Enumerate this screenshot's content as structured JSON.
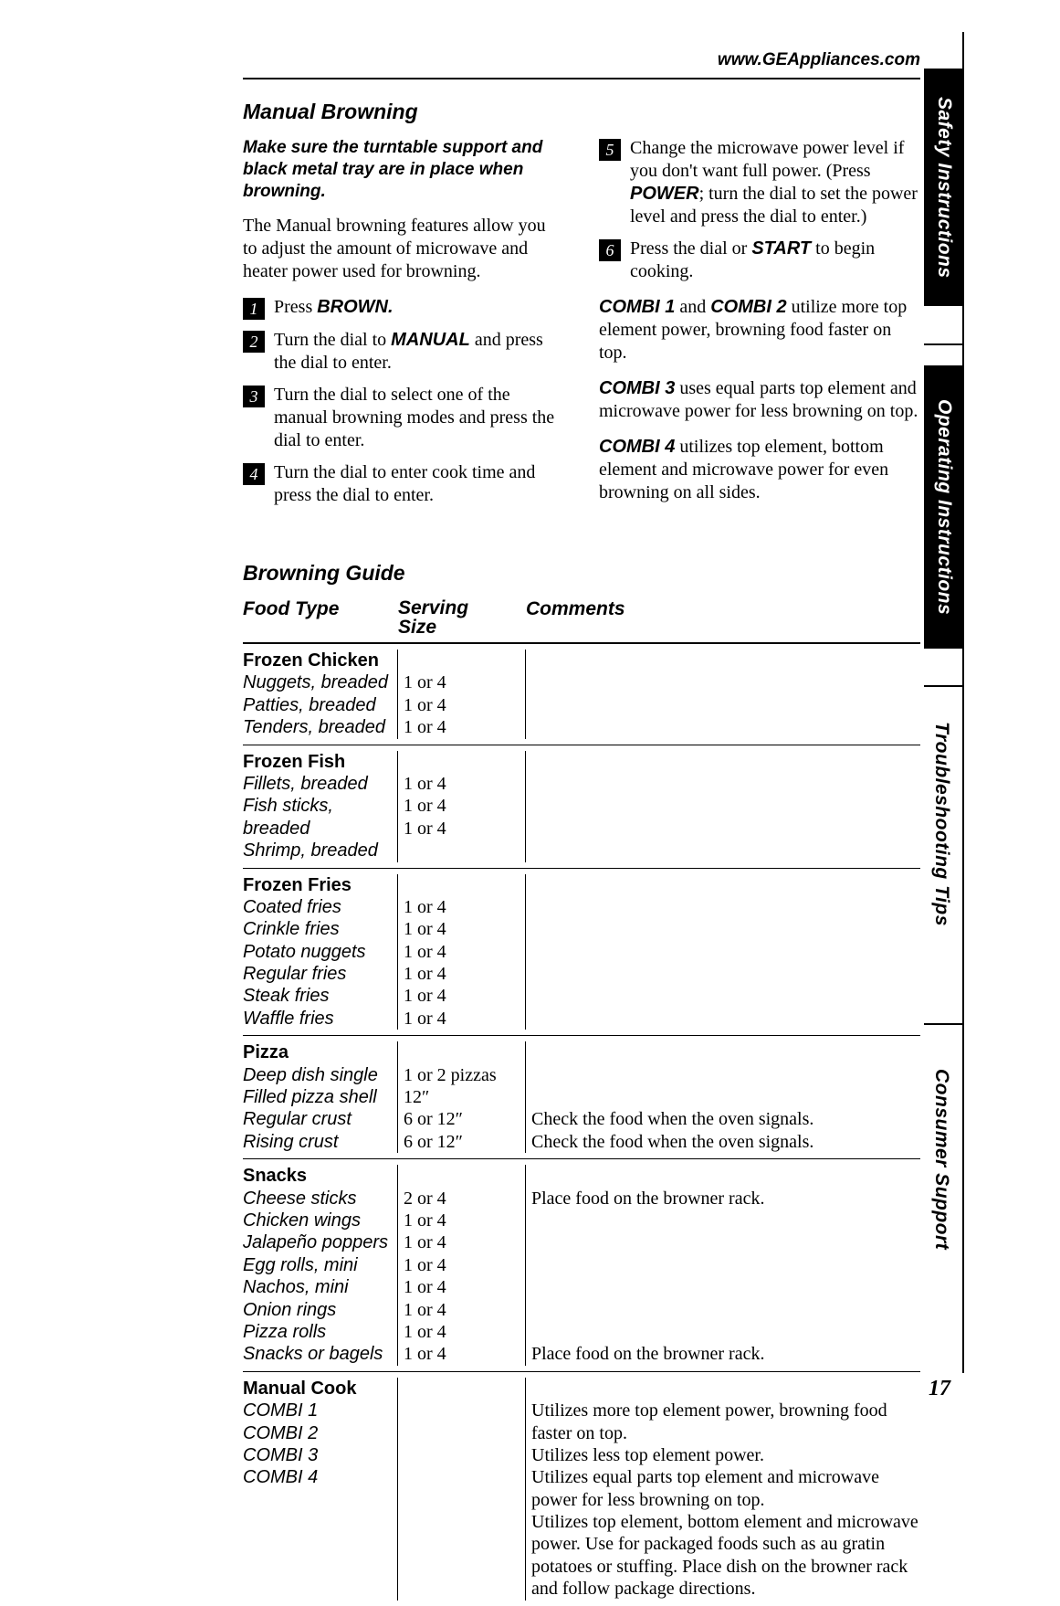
{
  "header": {
    "url": "www.GEAppliances.com",
    "page_number": "17"
  },
  "side_tabs": {
    "safety": "Safety Instructions",
    "operating": "Operating Instructions",
    "troubleshooting": "Troubleshooting Tips",
    "consumer": "Consumer Support"
  },
  "manual_browning": {
    "title": "Manual Browning",
    "note": "Make sure the turntable support and black metal tray are in place when browning.",
    "intro": "The Manual browning features allow you to adjust the amount of microwave and heater power used for browning.",
    "steps": {
      "s1_a": "Press ",
      "s1_b": "BROWN.",
      "s2_a": "Turn the dial to ",
      "s2_b": "MANUAL",
      "s2_c": " and press the dial to enter.",
      "s3": "Turn the dial to select one of the manual browning modes and press the dial to enter.",
      "s4": "Turn the dial to enter cook time and press the dial to enter.",
      "s5_a": "Change the microwave power level if you don't want full power. (Press ",
      "s5_b": "POWER",
      "s5_c": "; turn the dial to set the power level and press the dial to enter.)",
      "s6_a": "Press the dial or ",
      "s6_b": "START",
      "s6_c": " to begin cooking."
    },
    "combi": {
      "c12_a": "COMBI 1",
      "c12_b": " and ",
      "c12_c": "COMBI 2",
      "c12_d": " utilize more top element power, browning food faster on top.",
      "c3_a": "COMBI 3",
      "c3_b": " uses equal parts top element and microwave power for less browning on top.",
      "c4_a": "COMBI 4",
      "c4_b": " utilizes top element, bottom element and microwave power for even browning on all sides."
    }
  },
  "guide": {
    "title": "Browning Guide",
    "head": {
      "food": "Food Type",
      "size1": "Serving",
      "size2": "Size",
      "comments": "Comments"
    },
    "groups": [
      {
        "category": "Frozen Chicken",
        "rows": [
          {
            "item": "Nuggets, breaded",
            "size": "1 or 4",
            "comment": ""
          },
          {
            "item": "Patties, breaded",
            "size": "1 or 4",
            "comment": ""
          },
          {
            "item": "Tenders, breaded",
            "size": "1 or 4",
            "comment": ""
          }
        ]
      },
      {
        "category": "Frozen Fish",
        "rows": [
          {
            "item": "Fillets, breaded",
            "size": "1 or 4",
            "comment": ""
          },
          {
            "item": "Fish sticks, breaded",
            "size": "1 or 4",
            "comment": ""
          },
          {
            "item": "Shrimp, breaded",
            "size": "1 or 4",
            "comment": ""
          }
        ]
      },
      {
        "category": "Frozen Fries",
        "rows": [
          {
            "item": "Coated fries",
            "size": "1 or 4",
            "comment": ""
          },
          {
            "item": "Crinkle fries",
            "size": "1 or 4",
            "comment": ""
          },
          {
            "item": "Potato nuggets",
            "size": "1 or 4",
            "comment": ""
          },
          {
            "item": "Regular fries",
            "size": "1 or 4",
            "comment": ""
          },
          {
            "item": "Steak fries",
            "size": "1 or 4",
            "comment": ""
          },
          {
            "item": "Waffle fries",
            "size": "1 or 4",
            "comment": ""
          }
        ]
      },
      {
        "category": "Pizza",
        "rows": [
          {
            "item": "Deep dish single",
            "size": "1 or 2 pizzas",
            "comment": ""
          },
          {
            "item": "Filled pizza shell",
            "size": "12″",
            "comment": ""
          },
          {
            "item": "Regular crust",
            "size": "6 or 12″",
            "comment": "Check the food when the oven signals."
          },
          {
            "item": "Rising crust",
            "size": "6 or 12″",
            "comment": "Check the food when the oven signals."
          }
        ]
      },
      {
        "category": "Snacks",
        "rows": [
          {
            "item": "Cheese sticks",
            "size": "2 or 4",
            "comment": "Place food on the browner rack."
          },
          {
            "item": "Chicken wings",
            "size": "1 or 4",
            "comment": ""
          },
          {
            "item": "Jalapeño poppers",
            "size": "1 or 4",
            "comment": ""
          },
          {
            "item": "Egg rolls, mini",
            "size": "1 or 4",
            "comment": ""
          },
          {
            "item": "Nachos, mini",
            "size": "1 or 4",
            "comment": ""
          },
          {
            "item": "Onion rings",
            "size": "1 or 4",
            "comment": ""
          },
          {
            "item": "Pizza rolls",
            "size": "1 or 4",
            "comment": ""
          },
          {
            "item": "Snacks or bagels",
            "size": "1 or 4",
            "comment": "Place food on the browner rack."
          }
        ]
      },
      {
        "category": "Manual Cook",
        "rows": [
          {
            "item": "COMBI 1",
            "size": "",
            "comment": "Utilizes more top element power, browning food faster on top."
          },
          {
            "item": "COMBI 2",
            "size": "",
            "comment": "Utilizes less top element power."
          },
          {
            "item": "COMBI 3",
            "size": "",
            "comment": "Utilizes equal parts top element and microwave power for less browning on top."
          },
          {
            "item": "COMBI 4",
            "size": "",
            "comment": "Utilizes top element, bottom element and microwave power. Use for packaged foods such as au gratin potatoes or stuffing. Place dish on the browner rack and follow package directions."
          }
        ]
      }
    ]
  }
}
